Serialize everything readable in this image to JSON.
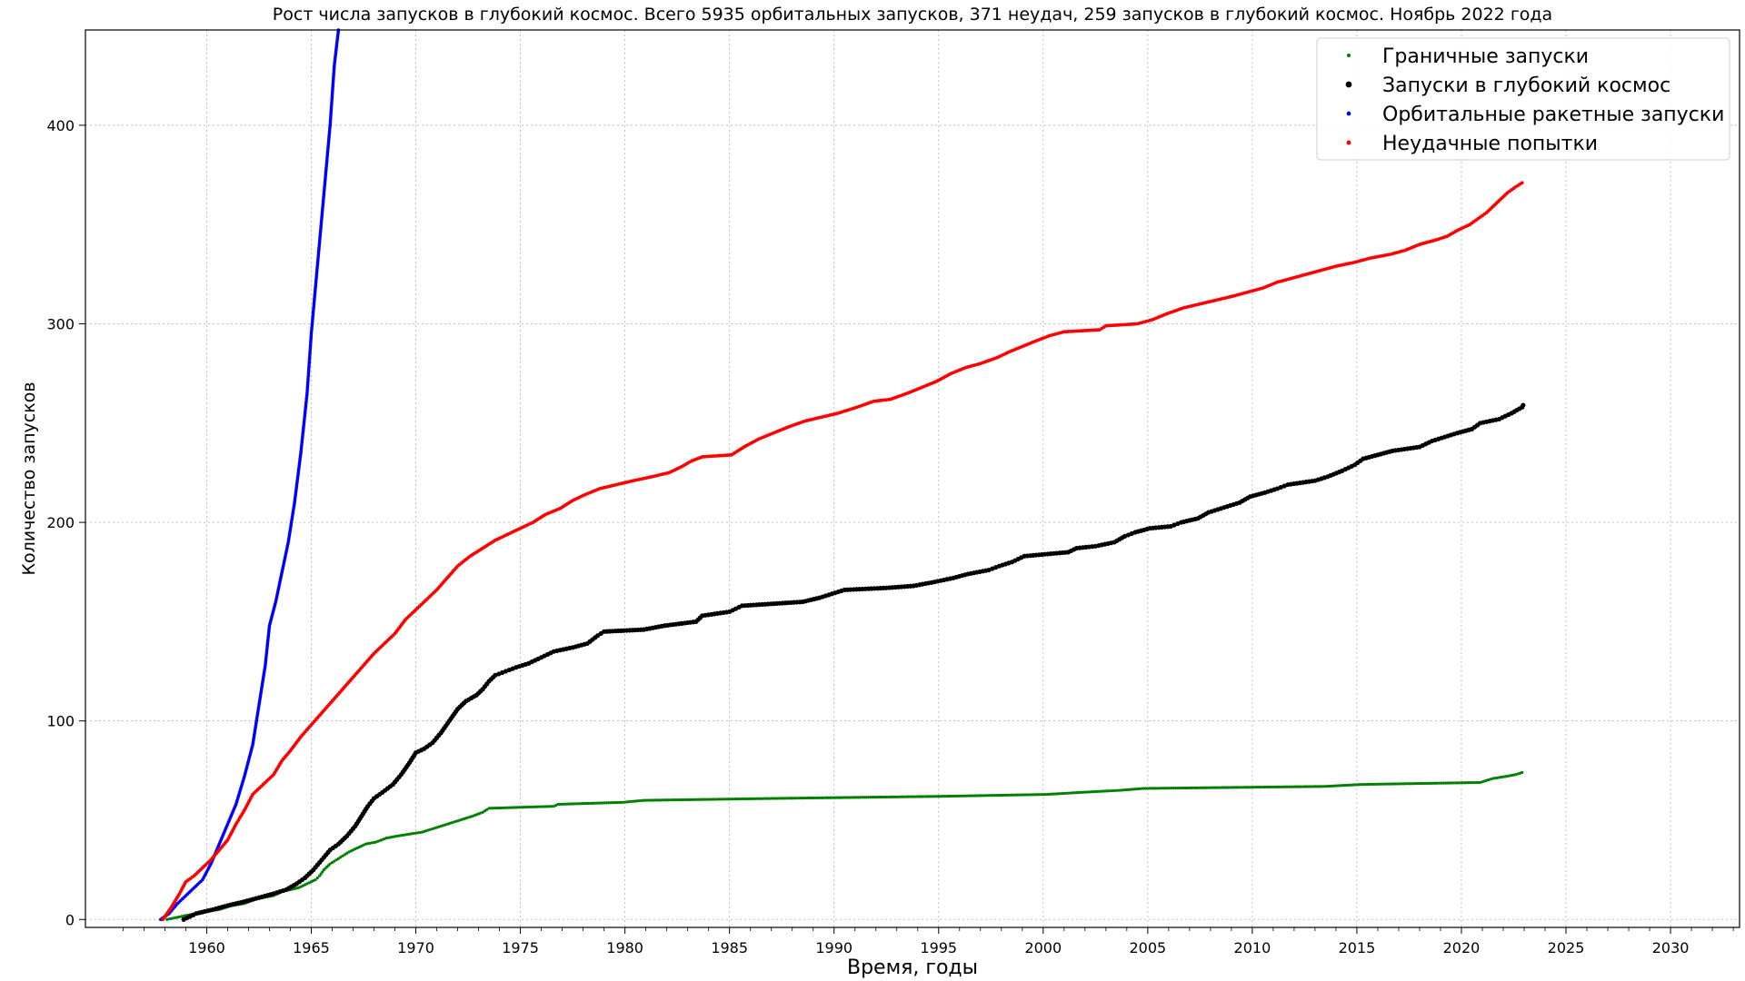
{
  "chart_data": {
    "type": "scatter",
    "title": "Рост числа запусков в глубокий космос. Всего 5935 орбитальных запусков, 371 неудач, 259 запусков в глубокий космос. Ноябрь 2022 года",
    "xlabel": "Время, годы",
    "ylabel": "Количество запусков",
    "xlim": [
      1954.2,
      2033.3
    ],
    "ylim": [
      -4,
      448
    ],
    "xticks": [
      1960,
      1965,
      1970,
      1975,
      1980,
      1985,
      1990,
      1995,
      2000,
      2005,
      2010,
      2015,
      2020,
      2025,
      2030
    ],
    "yticks": [
      0,
      100,
      200,
      300,
      400
    ],
    "grid": true,
    "legend_position": "upper right",
    "series": [
      {
        "name": "Граничные запуски",
        "color": "#008000",
        "marker_size": 1.6,
        "points": [
          [
            1958.1,
            0
          ],
          [
            1959.0,
            2
          ],
          [
            1960.0,
            4
          ],
          [
            1960.6,
            5
          ],
          [
            1961.2,
            7
          ],
          [
            1961.8,
            8
          ],
          [
            1962.3,
            10
          ],
          [
            1962.7,
            11
          ],
          [
            1963.2,
            12
          ],
          [
            1963.6,
            14
          ],
          [
            1964.0,
            15
          ],
          [
            1964.4,
            16
          ],
          [
            1964.8,
            18
          ],
          [
            1965.0,
            19
          ],
          [
            1965.2,
            20
          ],
          [
            1965.4,
            22
          ],
          [
            1965.6,
            25
          ],
          [
            1965.9,
            28
          ],
          [
            1966.2,
            30
          ],
          [
            1966.5,
            32
          ],
          [
            1966.8,
            34
          ],
          [
            1967.2,
            36
          ],
          [
            1967.6,
            38
          ],
          [
            1968.1,
            39
          ],
          [
            1968.6,
            41
          ],
          [
            1969.1,
            42
          ],
          [
            1969.7,
            43
          ],
          [
            1970.3,
            44
          ],
          [
            1970.9,
            46
          ],
          [
            1971.5,
            48
          ],
          [
            1972.1,
            50
          ],
          [
            1972.7,
            52
          ],
          [
            1973.2,
            54
          ],
          [
            1973.5,
            56
          ],
          [
            1976.6,
            57
          ],
          [
            1976.8,
            58
          ],
          [
            1979.9,
            59
          ],
          [
            1980.9,
            60
          ],
          [
            1987.4,
            61
          ],
          [
            1995.0,
            62
          ],
          [
            2000.2,
            63
          ],
          [
            2001.8,
            64
          ],
          [
            2003.6,
            65
          ],
          [
            2004.8,
            66
          ],
          [
            2013.4,
            67
          ],
          [
            2015.2,
            68
          ],
          [
            2020.9,
            69
          ],
          [
            2021.5,
            71
          ],
          [
            2022.1,
            72
          ],
          [
            2022.6,
            73
          ],
          [
            2022.9,
            74
          ]
        ]
      },
      {
        "name": "Запуски в глубокий космос",
        "color": "#000000",
        "marker_size": 2.6,
        "points": [
          [
            1958.9,
            0
          ],
          [
            1959.5,
            3
          ],
          [
            1960.3,
            5
          ],
          [
            1961.0,
            7
          ],
          [
            1961.8,
            9
          ],
          [
            1962.5,
            11
          ],
          [
            1963.2,
            13
          ],
          [
            1963.8,
            15
          ],
          [
            1964.3,
            18
          ],
          [
            1964.7,
            21
          ],
          [
            1965.1,
            25
          ],
          [
            1965.5,
            30
          ],
          [
            1965.9,
            35
          ],
          [
            1966.3,
            38
          ],
          [
            1966.7,
            42
          ],
          [
            1967.1,
            47
          ],
          [
            1967.4,
            52
          ],
          [
            1967.7,
            57
          ],
          [
            1968.0,
            61
          ],
          [
            1968.4,
            64
          ],
          [
            1968.9,
            68
          ],
          [
            1969.3,
            73
          ],
          [
            1969.7,
            79
          ],
          [
            1970.0,
            84
          ],
          [
            1970.4,
            86
          ],
          [
            1970.8,
            89
          ],
          [
            1971.2,
            94
          ],
          [
            1971.6,
            100
          ],
          [
            1972.0,
            106
          ],
          [
            1972.4,
            110
          ],
          [
            1972.9,
            113
          ],
          [
            1973.2,
            116
          ],
          [
            1973.5,
            120
          ],
          [
            1973.8,
            123
          ],
          [
            1974.3,
            125
          ],
          [
            1974.8,
            127
          ],
          [
            1975.4,
            129
          ],
          [
            1976.0,
            132
          ],
          [
            1976.6,
            135
          ],
          [
            1977.5,
            137
          ],
          [
            1978.2,
            139
          ],
          [
            1978.7,
            143
          ],
          [
            1979.0,
            145
          ],
          [
            1980.9,
            146
          ],
          [
            1981.9,
            148
          ],
          [
            1983.4,
            150
          ],
          [
            1983.7,
            153
          ],
          [
            1985.0,
            155
          ],
          [
            1985.6,
            158
          ],
          [
            1988.5,
            160
          ],
          [
            1989.3,
            162
          ],
          [
            1989.9,
            164
          ],
          [
            1990.5,
            166
          ],
          [
            1992.5,
            167
          ],
          [
            1993.8,
            168
          ],
          [
            1994.8,
            170
          ],
          [
            1995.7,
            172
          ],
          [
            1996.4,
            174
          ],
          [
            1997.4,
            176
          ],
          [
            1997.9,
            178
          ],
          [
            1998.5,
            180
          ],
          [
            1999.1,
            183
          ],
          [
            2001.2,
            185
          ],
          [
            2001.6,
            187
          ],
          [
            2002.5,
            188
          ],
          [
            2003.4,
            190
          ],
          [
            2003.9,
            193
          ],
          [
            2004.4,
            195
          ],
          [
            2005.1,
            197
          ],
          [
            2006.1,
            198
          ],
          [
            2006.6,
            200
          ],
          [
            2007.4,
            202
          ],
          [
            2007.9,
            205
          ],
          [
            2008.8,
            208
          ],
          [
            2009.4,
            210
          ],
          [
            2009.9,
            213
          ],
          [
            2010.6,
            215
          ],
          [
            2011.2,
            217
          ],
          [
            2011.7,
            219
          ],
          [
            2013.0,
            221
          ],
          [
            2013.6,
            223
          ],
          [
            2014.3,
            226
          ],
          [
            2014.9,
            229
          ],
          [
            2015.3,
            232
          ],
          [
            2016.0,
            234
          ],
          [
            2016.7,
            236
          ],
          [
            2018.0,
            238
          ],
          [
            2018.6,
            241
          ],
          [
            2019.2,
            243
          ],
          [
            2019.8,
            245
          ],
          [
            2020.5,
            247
          ],
          [
            2020.9,
            250
          ],
          [
            2021.8,
            252
          ],
          [
            2022.4,
            255
          ],
          [
            2022.9,
            258
          ],
          [
            2022.95,
            259
          ]
        ]
      },
      {
        "name": "Орбитальные ракетные запуски",
        "color": "#0000ff",
        "marker_size": 1.8,
        "points": [
          [
            1957.8,
            0
          ],
          [
            1958.2,
            3
          ],
          [
            1958.6,
            8
          ],
          [
            1959.0,
            12
          ],
          [
            1959.4,
            16
          ],
          [
            1959.8,
            20
          ],
          [
            1960.2,
            28
          ],
          [
            1960.6,
            38
          ],
          [
            1961.0,
            48
          ],
          [
            1961.4,
            58
          ],
          [
            1961.8,
            72
          ],
          [
            1962.2,
            88
          ],
          [
            1962.5,
            108
          ],
          [
            1962.8,
            128
          ],
          [
            1963.0,
            148
          ],
          [
            1963.3,
            160
          ],
          [
            1963.6,
            175
          ],
          [
            1963.9,
            190
          ],
          [
            1964.2,
            210
          ],
          [
            1964.5,
            235
          ],
          [
            1964.8,
            265
          ],
          [
            1965.0,
            295
          ],
          [
            1965.3,
            330
          ],
          [
            1965.6,
            365
          ],
          [
            1965.9,
            400
          ],
          [
            1966.1,
            430
          ],
          [
            1966.3,
            448
          ]
        ]
      },
      {
        "name": "Неудачные попытки",
        "color": "#ff0000",
        "marker_size": 1.9,
        "points": [
          [
            1957.9,
            0
          ],
          [
            1958.3,
            6
          ],
          [
            1958.7,
            13
          ],
          [
            1959.0,
            19
          ],
          [
            1959.4,
            22
          ],
          [
            1959.8,
            26
          ],
          [
            1960.2,
            30
          ],
          [
            1960.6,
            35
          ],
          [
            1961.0,
            40
          ],
          [
            1961.4,
            48
          ],
          [
            1961.8,
            55
          ],
          [
            1962.2,
            63
          ],
          [
            1962.7,
            68
          ],
          [
            1963.2,
            73
          ],
          [
            1963.6,
            80
          ],
          [
            1964.0,
            85
          ],
          [
            1964.5,
            92
          ],
          [
            1965.0,
            98
          ],
          [
            1965.5,
            104
          ],
          [
            1966.0,
            110
          ],
          [
            1966.5,
            116
          ],
          [
            1967.0,
            122
          ],
          [
            1967.5,
            128
          ],
          [
            1968.0,
            134
          ],
          [
            1968.5,
            139
          ],
          [
            1969.0,
            144
          ],
          [
            1969.5,
            151
          ],
          [
            1970.0,
            156
          ],
          [
            1970.5,
            161
          ],
          [
            1971.0,
            166
          ],
          [
            1971.5,
            172
          ],
          [
            1972.0,
            178
          ],
          [
            1972.6,
            183
          ],
          [
            1973.2,
            187
          ],
          [
            1973.8,
            191
          ],
          [
            1974.4,
            194
          ],
          [
            1975.0,
            197
          ],
          [
            1975.6,
            200
          ],
          [
            1976.2,
            204
          ],
          [
            1976.9,
            207
          ],
          [
            1977.5,
            211
          ],
          [
            1978.1,
            214
          ],
          [
            1978.8,
            217
          ],
          [
            1979.6,
            219
          ],
          [
            1980.4,
            221
          ],
          [
            1981.3,
            223
          ],
          [
            1982.1,
            225
          ],
          [
            1982.7,
            228
          ],
          [
            1983.2,
            231
          ],
          [
            1983.7,
            233
          ],
          [
            1985.1,
            234
          ],
          [
            1985.7,
            238
          ],
          [
            1986.4,
            242
          ],
          [
            1987.1,
            245
          ],
          [
            1987.8,
            248
          ],
          [
            1988.6,
            251
          ],
          [
            1989.4,
            253
          ],
          [
            1990.2,
            255
          ],
          [
            1991.1,
            258
          ],
          [
            1991.9,
            261
          ],
          [
            1992.7,
            262
          ],
          [
            1993.5,
            265
          ],
          [
            1994.2,
            268
          ],
          [
            1994.9,
            271
          ],
          [
            1995.6,
            275
          ],
          [
            1996.3,
            278
          ],
          [
            1997.0,
            280
          ],
          [
            1997.8,
            283
          ],
          [
            1998.4,
            286
          ],
          [
            1999.1,
            289
          ],
          [
            1999.8,
            292
          ],
          [
            2000.3,
            294
          ],
          [
            2001.0,
            296
          ],
          [
            2002.7,
            297
          ],
          [
            2003.0,
            299
          ],
          [
            2004.5,
            300
          ],
          [
            2005.2,
            302
          ],
          [
            2005.9,
            305
          ],
          [
            2006.7,
            308
          ],
          [
            2007.5,
            310
          ],
          [
            2008.3,
            312
          ],
          [
            2009.1,
            314
          ],
          [
            2009.8,
            316
          ],
          [
            2010.5,
            318
          ],
          [
            2011.2,
            321
          ],
          [
            2011.9,
            323
          ],
          [
            2012.6,
            325
          ],
          [
            2013.3,
            327
          ],
          [
            2014.0,
            329
          ],
          [
            2014.9,
            331
          ],
          [
            2015.6,
            333
          ],
          [
            2016.6,
            335
          ],
          [
            2017.3,
            337
          ],
          [
            2018.0,
            340
          ],
          [
            2018.7,
            342
          ],
          [
            2019.3,
            344
          ],
          [
            2019.8,
            347
          ],
          [
            2020.4,
            350
          ],
          [
            2020.8,
            353
          ],
          [
            2021.2,
            356
          ],
          [
            2021.6,
            360
          ],
          [
            2021.9,
            363
          ],
          [
            2022.2,
            366
          ],
          [
            2022.6,
            369
          ],
          [
            2022.9,
            371
          ]
        ]
      }
    ]
  }
}
